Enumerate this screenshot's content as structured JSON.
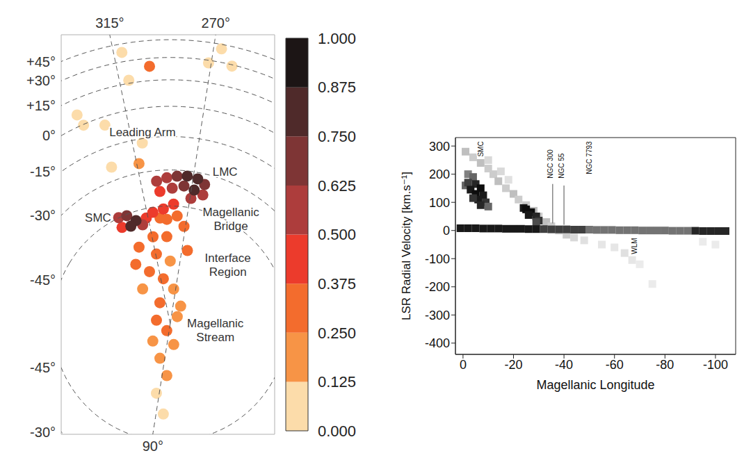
{
  "chart_data": [
    {
      "type": "map",
      "xlim": [
        -0.71,
        0.68
      ],
      "ylim": [
        -0.72,
        1.88
      ],
      "tick_labels": false,
      "grid": true,
      "marker": "circle",
      "latitudes": [
        {
          "value": 45,
          "label": "+45°"
        },
        {
          "value": 30,
          "label": "+30°"
        },
        {
          "value": 15,
          "label": "+15°"
        },
        {
          "value": 0,
          "label": "0°"
        },
        {
          "value": -15,
          "label": "-15°"
        },
        {
          "value": -30,
          "label": "-30°"
        },
        {
          "value": -45,
          "label": "-45°"
        }
      ],
      "longitudes": [
        {
          "value": 315,
          "label": "315°"
        },
        {
          "value": 270,
          "label": "270°"
        },
        {
          "value": 90,
          "label": "90°"
        }
      ],
      "clouds": {
        "l": [
          303,
          293.3,
          283.4,
          274.6,
          266.8,
          261.8,
          300.8,
          287.9,
          276.5,
          267.8,
          261.3,
          269.2,
          333.1,
          328.7,
          324.4,
          328.8,
          320.7,
          333.8,
          316.5,
          309.9,
          298.4,
          286,
          303.1,
          294.6,
          281,
          271.7,
          314,
          295.6,
          329,
          314,
          290,
          328.5,
          309.6,
          344.7,
          276.7,
          333.5,
          242.1,
          11.2,
          66.4,
          50.1,
          131,
          78,
          100.8,
          86,
          99.4,
          324.2,
          330.6,
          309.7,
          312.1,
          311.3,
          301.1,
          267.1,
          262.4,
          271.1,
          331.1,
          313.7,
          327.1,
          262.8,
          337.3,
          230
        ],
        "b": [
          -34.5,
          -33.3,
          -32.6,
          -32.2,
          -32.7,
          -34.4,
          -38.9,
          -37.7,
          -36.5,
          -37.6,
          -38.8,
          -41.2,
          -44.9,
          -45.5,
          -48.6,
          -50,
          -51,
          -49,
          -48.7,
          -47,
          -46.1,
          -44.2,
          -49.6,
          -50.3,
          -48.9,
          -52.7,
          -56.5,
          -57.1,
          -58.8,
          -63.3,
          -66.5,
          -69,
          -73,
          -73.4,
          -77,
          -81.3,
          -82.4,
          -84.7,
          -87.1,
          -80.8,
          -82.1,
          -76.5,
          -70.5,
          -63.3,
          -55.7,
          -4.3,
          -0.4,
          -17,
          37.4,
          16.9,
          24.3,
          40.9,
          29,
          28.1,
          6.1,
          -25.9,
          -24.1,
          -61.7,
          -64.2,
          -86.3
        ],
        "values": [
          0.5,
          0.6,
          0.65,
          0.75,
          0.85,
          0.7,
          0.45,
          0.55,
          0.7,
          0.8,
          0.6,
          0.5,
          0.5,
          0.7,
          0.8,
          0.75,
          0.55,
          0.45,
          0.45,
          0.4,
          0.4,
          0.45,
          0.35,
          0.3,
          0.3,
          0.25,
          0.3,
          0.25,
          0.3,
          0.25,
          0.2,
          0.3,
          0.3,
          0.2,
          0.2,
          0.3,
          0.2,
          0.3,
          0.25,
          0.2,
          0.2,
          0.15,
          0.15,
          0.12,
          0.1,
          0.1,
          0.1,
          0.12,
          0.1,
          0.1,
          0.25,
          0.1,
          0.08,
          0.1,
          0.08,
          0.15,
          0.1,
          0.3,
          0.3,
          0.2
        ]
      },
      "annotations": [
        {
          "text": "Leading Arm",
          "l": 308.7,
          "b": -12.1
        },
        {
          "text": "LMC",
          "l": 253.7,
          "b": -26.7
        },
        {
          "text": "SMC",
          "l": 341.1,
          "b": -40.7
        },
        {
          "text": "Magellanic Bridge",
          "l": 242.7,
          "b": -43.7
        },
        {
          "text": "Interface Region",
          "l": 230.4,
          "b": -59
        },
        {
          "text": "Magellanic Stream",
          "l": 194.5,
          "b": -72.9
        }
      ],
      "colorbar": {
        "range": [
          0,
          1
        ],
        "ticks": [
          {
            "value": 0,
            "label": "0.000"
          },
          {
            "value": 0.125,
            "label": "0.125"
          },
          {
            "value": 0.25,
            "label": "0.250"
          },
          {
            "value": 0.375,
            "label": "0.375"
          },
          {
            "value": 0.5,
            "label": "0.500"
          },
          {
            "value": 0.625,
            "label": "0.625"
          },
          {
            "value": 0.75,
            "label": "0.750"
          },
          {
            "value": 0.875,
            "label": "0.875"
          },
          {
            "value": 1,
            "label": "1.000"
          }
        ],
        "colors": [
          "#fcdcaa",
          "#f79446",
          "#f36c2d",
          "#ec3b2c",
          "#ad3d3c",
          "#7e3535",
          "#4f2a2a",
          "#1c1515"
        ]
      }
    },
    {
      "type": "scatter",
      "marker": "square",
      "x_label": "Magellanic Longitude",
      "y_label": "LSR Radial Velocity [km.s⁻¹]",
      "xlim": [
        3,
        -108
      ],
      "ylim": [
        -440,
        330
      ],
      "xticks": [
        0,
        -20,
        -40,
        -60,
        -80,
        -100
      ],
      "yticks": [
        300,
        200,
        100,
        0,
        -100,
        -200,
        -300,
        -400
      ],
      "x": [
        -1,
        -4,
        -7,
        -10,
        -12,
        -14,
        -17,
        -20,
        -22,
        -25,
        -28,
        -30,
        -33,
        -35,
        -38,
        -41,
        -44,
        -48,
        -55,
        -60,
        -64,
        -67,
        -70,
        -75,
        -10,
        -15,
        -18,
        -95,
        -100,
        -2,
        -4,
        -1,
        -2,
        -5,
        -7,
        -3,
        -5,
        -8,
        -6,
        -4,
        -9,
        -7,
        -10,
        -24,
        -25,
        -27,
        -26,
        -29,
        -30,
        -29,
        1,
        -2,
        -5,
        -8,
        -11,
        -14,
        -17,
        -20,
        -23,
        -26,
        -29,
        -32,
        -35,
        -38,
        -41,
        -44,
        -47,
        -50,
        -53,
        -56,
        -59,
        -62,
        -65,
        -68,
        -71,
        -74,
        -77,
        -80,
        -83,
        -86,
        -89,
        -92,
        -95,
        -98,
        -101,
        -104
      ],
      "y": [
        280,
        260,
        240,
        220,
        200,
        175,
        150,
        130,
        110,
        90,
        70,
        50,
        30,
        15,
        0,
        -15,
        -25,
        -35,
        -50,
        -60,
        -80,
        -105,
        -120,
        -190,
        250,
        210,
        180,
        -40,
        -50,
        200,
        190,
        160,
        170,
        165,
        150,
        145,
        130,
        125,
        110,
        115,
        100,
        90,
        85,
        80,
        75,
        65,
        55,
        50,
        35,
        30,
        8,
        8,
        8,
        7,
        7,
        7,
        6,
        6,
        6,
        5,
        5,
        5,
        4,
        4,
        4,
        3,
        3,
        3,
        2,
        2,
        2,
        1,
        1,
        1,
        0,
        0,
        0,
        0,
        -1,
        -1,
        -1,
        -1,
        -2,
        -2,
        -2,
        -2
      ],
      "values": [
        0.25,
        0.2,
        0.25,
        0.2,
        0.2,
        0.25,
        0.2,
        0.25,
        0.2,
        0.2,
        0.25,
        0.2,
        0.25,
        0.2,
        0.2,
        0.2,
        0.15,
        0.12,
        0.1,
        0.1,
        0.12,
        0.1,
        0.08,
        0.08,
        0.15,
        0.15,
        0.12,
        0.08,
        0.08,
        0.5,
        0.6,
        0.6,
        0.75,
        0.85,
        0.95,
        0.9,
        0.95,
        0.9,
        0.9,
        0.8,
        0.8,
        0.85,
        0.6,
        0.9,
        0.95,
        0.95,
        0.9,
        0.85,
        0.8,
        0.7,
        0.9,
        0.9,
        0.9,
        0.9,
        0.9,
        0.9,
        0.9,
        0.9,
        0.9,
        0.9,
        0.9,
        0.75,
        0.75,
        0.75,
        0.75,
        0.75,
        0.75,
        0.55,
        0.55,
        0.55,
        0.55,
        0.55,
        0.55,
        0.55,
        0.55,
        0.55,
        0.55,
        0.55,
        0.55,
        0.55,
        0.55,
        0.85,
        0.85,
        0.85,
        0.85,
        0.85
      ],
      "lines": [
        {
          "x": [
            -35.5,
            -35.5
          ],
          "y": [
            25,
            165
          ]
        },
        {
          "x": [
            -40,
            -40
          ],
          "y": [
            20,
            160
          ]
        }
      ],
      "annotations": [
        {
          "text": "SMC",
          "x": -8,
          "y": 262
        },
        {
          "text": "NGC 300",
          "x": -35.5,
          "y": 185
        },
        {
          "text": "NGC 55",
          "x": -40,
          "y": 185
        },
        {
          "text": "NGC 7793",
          "x": -51,
          "y": 200
        },
        {
          "text": "WLM",
          "x": -69,
          "y": -84
        }
      ]
    }
  ]
}
